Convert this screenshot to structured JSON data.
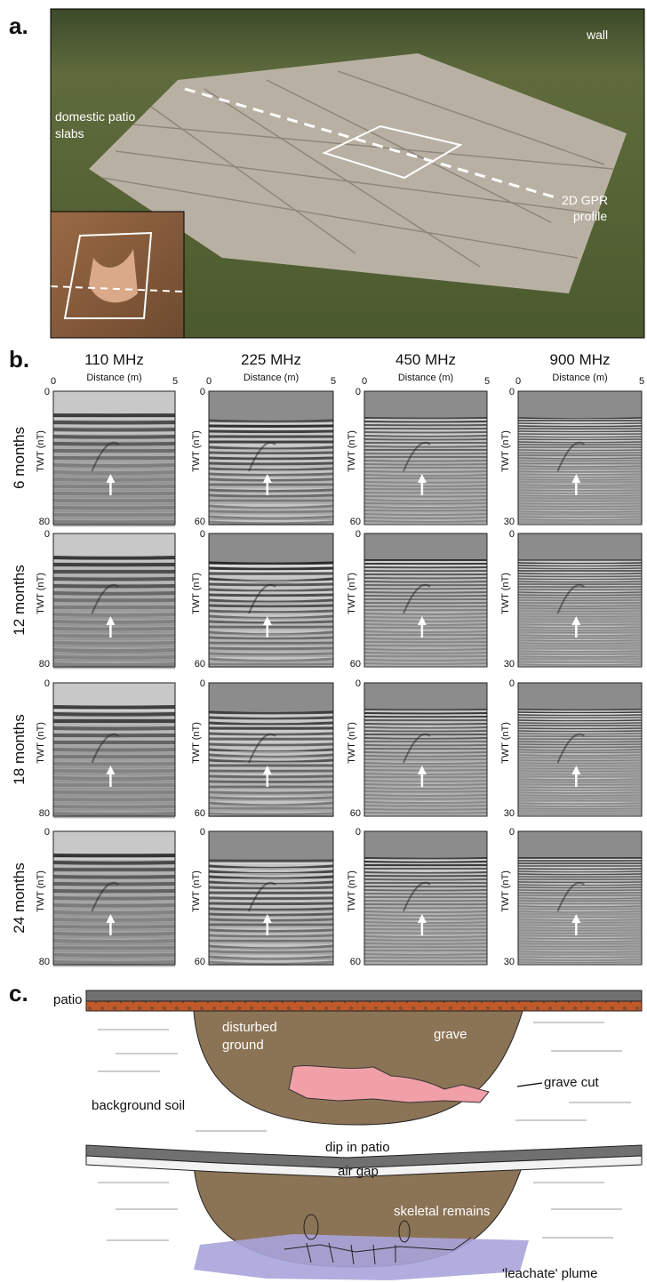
{
  "panel_a": {
    "label": "a.",
    "wall": "wall",
    "patio_slabs": [
      "domestic patio",
      "slabs"
    ],
    "profile": [
      "2D GPR",
      "profile"
    ]
  },
  "panel_b": {
    "label": "b.",
    "frequencies": [
      "110 MHz",
      "225 MHz",
      "450 MHz",
      "900 MHz"
    ],
    "x_axis_label": "Distance (m)",
    "x_ticks": [
      0,
      5
    ],
    "y_axis_label": "TWT (nT)",
    "y_ticks": [
      [
        0,
        80
      ],
      [
        0,
        60
      ],
      [
        0,
        60
      ],
      [
        0,
        30
      ]
    ],
    "rows": [
      "6 months",
      "12 months",
      "18 months",
      "24 months"
    ]
  },
  "panel_c": {
    "label": "c.",
    "top": {
      "patio": "patio",
      "disturbed_ground": [
        "disturbed",
        "ground"
      ],
      "grave": "grave",
      "grave_cut": "grave cut",
      "background_soil": "background soil"
    },
    "bottom": {
      "dip": "dip in patio",
      "air_gap": "air gap",
      "skeletal": "skeletal remains",
      "plume": "'leachate' plume"
    }
  }
}
